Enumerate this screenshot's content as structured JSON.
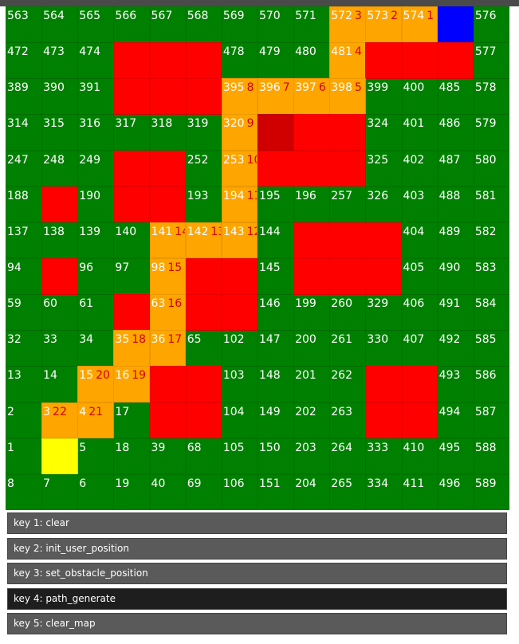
{
  "grid": {
    "rows": [
      [
        563,
        564,
        565,
        566,
        567,
        568,
        569,
        570,
        571,
        572,
        573,
        574,
        null,
        576
      ],
      [
        472,
        473,
        474,
        null,
        null,
        null,
        478,
        479,
        480,
        481,
        null,
        null,
        null,
        577
      ],
      [
        389,
        390,
        391,
        null,
        null,
        null,
        395,
        396,
        397,
        398,
        399,
        400,
        485,
        578
      ],
      [
        314,
        315,
        316,
        317,
        318,
        319,
        320,
        null,
        null,
        null,
        324,
        401,
        486,
        579
      ],
      [
        247,
        248,
        249,
        null,
        null,
        252,
        253,
        null,
        null,
        null,
        325,
        402,
        487,
        580
      ],
      [
        188,
        null,
        190,
        null,
        null,
        193,
        194,
        195,
        196,
        257,
        326,
        403,
        488,
        581
      ],
      [
        137,
        138,
        139,
        140,
        141,
        142,
        143,
        144,
        null,
        null,
        null,
        404,
        489,
        582
      ],
      [
        94,
        null,
        96,
        97,
        98,
        null,
        null,
        145,
        null,
        null,
        null,
        405,
        490,
        583
      ],
      [
        59,
        60,
        61,
        null,
        63,
        null,
        null,
        146,
        199,
        260,
        329,
        406,
        491,
        584
      ],
      [
        32,
        33,
        34,
        35,
        36,
        65,
        102,
        147,
        200,
        261,
        330,
        407,
        492,
        585
      ],
      [
        13,
        14,
        15,
        16,
        null,
        null,
        103,
        148,
        201,
        262,
        null,
        null,
        493,
        586
      ],
      [
        2,
        3,
        4,
        17,
        null,
        null,
        104,
        149,
        202,
        263,
        null,
        null,
        494,
        587
      ],
      [
        1,
        null,
        5,
        18,
        39,
        68,
        105,
        150,
        203,
        264,
        333,
        410,
        495,
        588
      ],
      [
        8,
        7,
        6,
        19,
        40,
        69,
        106,
        151,
        204,
        265,
        334,
        411,
        496,
        589
      ]
    ],
    "obstacles": [
      [
        1,
        3
      ],
      [
        1,
        4
      ],
      [
        1,
        5
      ],
      [
        1,
        10
      ],
      [
        1,
        11
      ],
      [
        1,
        12
      ],
      [
        2,
        3
      ],
      [
        2,
        4
      ],
      [
        2,
        5
      ],
      [
        3,
        8
      ],
      [
        3,
        9
      ],
      [
        4,
        3
      ],
      [
        4,
        4
      ],
      [
        4,
        7
      ],
      [
        4,
        8
      ],
      [
        4,
        9
      ],
      [
        5,
        1
      ],
      [
        5,
        3
      ],
      [
        5,
        4
      ],
      [
        6,
        8
      ],
      [
        6,
        9
      ],
      [
        6,
        10
      ],
      [
        7,
        1
      ],
      [
        7,
        5
      ],
      [
        7,
        6
      ],
      [
        7,
        8
      ],
      [
        7,
        9
      ],
      [
        7,
        10
      ],
      [
        8,
        3
      ],
      [
        8,
        5
      ],
      [
        8,
        6
      ],
      [
        10,
        4
      ],
      [
        10,
        5
      ],
      [
        10,
        10
      ],
      [
        10,
        11
      ],
      [
        11,
        4
      ],
      [
        11,
        5
      ],
      [
        11,
        10
      ],
      [
        11,
        11
      ]
    ],
    "dark_obstacles": [
      [
        3,
        7
      ]
    ],
    "path": [
      {
        "r": 0,
        "c": 11,
        "step": "1"
      },
      {
        "r": 0,
        "c": 10,
        "step": "2"
      },
      {
        "r": 0,
        "c": 9,
        "step": "3"
      },
      {
        "r": 1,
        "c": 9,
        "step": "4"
      },
      {
        "r": 2,
        "c": 9,
        "step": "5"
      },
      {
        "r": 2,
        "c": 8,
        "step": "6"
      },
      {
        "r": 2,
        "c": 7,
        "step": "7"
      },
      {
        "r": 2,
        "c": 6,
        "step": "8"
      },
      {
        "r": 3,
        "c": 6,
        "step": "9"
      },
      {
        "r": 4,
        "c": 6,
        "step": "10"
      },
      {
        "r": 5,
        "c": 6,
        "step": "11"
      },
      {
        "r": 6,
        "c": 6,
        "step": "12"
      },
      {
        "r": 6,
        "c": 5,
        "step": "13"
      },
      {
        "r": 6,
        "c": 4,
        "step": "14"
      },
      {
        "r": 7,
        "c": 4,
        "step": "15"
      },
      {
        "r": 8,
        "c": 4,
        "step": "16"
      },
      {
        "r": 9,
        "c": 4,
        "step": "17"
      },
      {
        "r": 9,
        "c": 3,
        "step": "18"
      },
      {
        "r": 10,
        "c": 3,
        "step": "19"
      },
      {
        "r": 10,
        "c": 2,
        "step": "20"
      },
      {
        "r": 11,
        "c": 2,
        "step": "21"
      },
      {
        "r": 11,
        "c": 1,
        "step": "22"
      }
    ],
    "target": [
      0,
      12
    ],
    "user": [
      12,
      1
    ],
    "colors": {
      "free": "#008000",
      "obstacle": "#ff0000",
      "obstacle_dark": "#d00000",
      "path": "#ffa500",
      "target": "#0000ff",
      "user": "#ffff00",
      "step_text": "#d40000"
    }
  },
  "keys": [
    {
      "label": "key 1: clear",
      "active": false
    },
    {
      "label": "key 2: init_user_position",
      "active": false
    },
    {
      "label": "key 3: set_obstacle_position",
      "active": false
    },
    {
      "label": "key 4: path_generate",
      "active": true
    },
    {
      "label": "key 5: clear_map",
      "active": false
    }
  ]
}
